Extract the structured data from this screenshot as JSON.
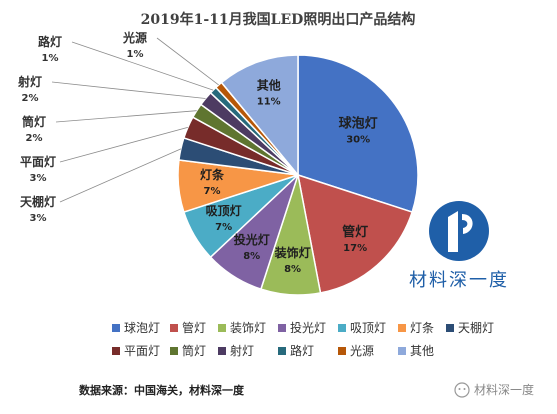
{
  "chart_data": {
    "type": "pie",
    "title": "2019年1-11月我国LED照明出口产品结构",
    "slices": [
      {
        "name": "球泡灯",
        "value": 30,
        "label": "30%",
        "color": "#4472C4"
      },
      {
        "name": "管灯",
        "value": 17,
        "label": "17%",
        "color": "#C0504D"
      },
      {
        "name": "装饰灯",
        "value": 8,
        "label": "8%",
        "color": "#9BBB59"
      },
      {
        "name": "投光灯",
        "value": 8,
        "label": "8%",
        "color": "#7F62A3"
      },
      {
        "name": "吸顶灯",
        "value": 7,
        "label": "7%",
        "color": "#4BACC6"
      },
      {
        "name": "灯条",
        "value": 7,
        "label": "7%",
        "color": "#F79646"
      },
      {
        "name": "天棚灯",
        "value": 3,
        "label": "3%",
        "color": "#2C4D75"
      },
      {
        "name": "平面灯",
        "value": 3,
        "label": "3%",
        "color": "#772C2A"
      },
      {
        "name": "筒灯",
        "value": 2,
        "label": "2%",
        "color": "#5F7530"
      },
      {
        "name": "射灯",
        "value": 2,
        "label": "2%",
        "color": "#4D3B62"
      },
      {
        "name": "路灯",
        "value": 1,
        "label": "1%",
        "color": "#276A7C"
      },
      {
        "name": "光源",
        "value": 1,
        "label": "1%",
        "color": "#B65708"
      },
      {
        "name": "其他",
        "value": 11,
        "label": "11%",
        "color": "#8EA9DB"
      }
    ],
    "legend_position": "bottom"
  },
  "watermark": {
    "logo_text": "材料深一度",
    "logo_color": "#1F5FA8"
  },
  "source_note": "数据来源：中国海关，材料深一度",
  "wechat_tag": "材料深一度"
}
